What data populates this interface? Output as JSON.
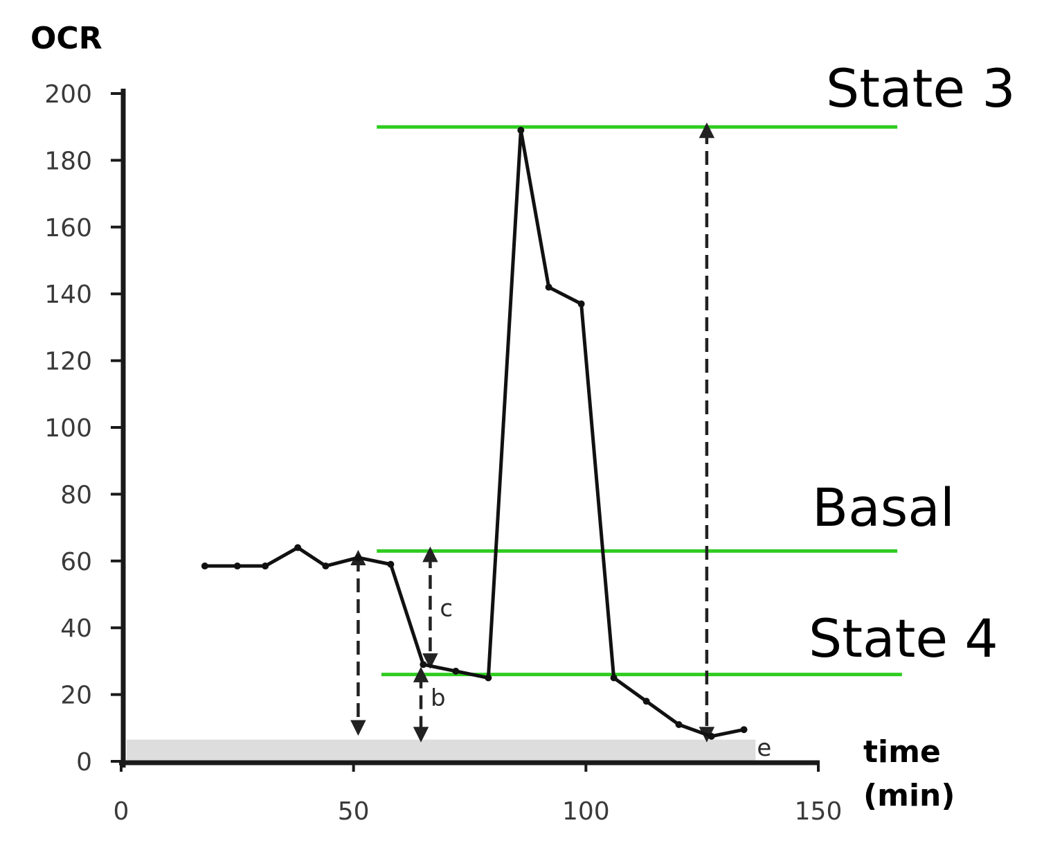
{
  "chart_data": {
    "type": "line",
    "title": "",
    "ylabel": "OCR",
    "xlabel_lines": [
      "time",
      "(min)"
    ],
    "xlim": [
      0,
      150
    ],
    "ylim": [
      0,
      200
    ],
    "x_ticks": [
      0,
      50,
      100,
      150
    ],
    "y_ticks": [
      0,
      20,
      40,
      60,
      80,
      100,
      120,
      140,
      160,
      180,
      200
    ],
    "grid": false,
    "legend": "none",
    "series": [
      {
        "x": [
          18,
          25,
          31,
          38,
          44,
          51,
          58,
          65,
          72,
          79,
          86,
          92,
          99,
          106,
          113,
          120,
          127,
          134
        ],
        "y": [
          58.5,
          58.5,
          58.5,
          64,
          58.5,
          61,
          59,
          29,
          27,
          25,
          189,
          142,
          137,
          25,
          18,
          11,
          7.5,
          9.5
        ]
      }
    ],
    "background_band": {
      "y_from": 0,
      "y_to": 6.5,
      "label": "e",
      "color": "#dddddd"
    },
    "reference_lines": [
      {
        "label": "State 3",
        "y": 190,
        "x_from": 55,
        "x_to": 167,
        "color": "#2fcc20"
      },
      {
        "label": "Basal",
        "y": 63,
        "x_from": 55,
        "x_to": 167,
        "color": "#2fcc20"
      },
      {
        "label": "State 4",
        "y": 26,
        "x_from": 56,
        "x_to": 168,
        "color": "#2fcc20"
      }
    ],
    "annotations": [
      {
        "label": "",
        "x": 51,
        "y_from": 61,
        "y_to": 10,
        "style": "dashed-double-arrow"
      },
      {
        "label": "b",
        "x": 64.5,
        "y_from": 26,
        "y_to": 8,
        "style": "dashed-double-arrow"
      },
      {
        "label": "c",
        "x": 66.5,
        "y_from": 62,
        "y_to": 30,
        "style": "dashed-double-arrow"
      },
      {
        "label": "",
        "x": 126,
        "y_from": 189,
        "y_to": 8,
        "style": "dashed-double-arrow"
      }
    ],
    "colors": {
      "line": "#111111",
      "axis": "#1a1a1a",
      "guide": "#2fcc20"
    }
  }
}
